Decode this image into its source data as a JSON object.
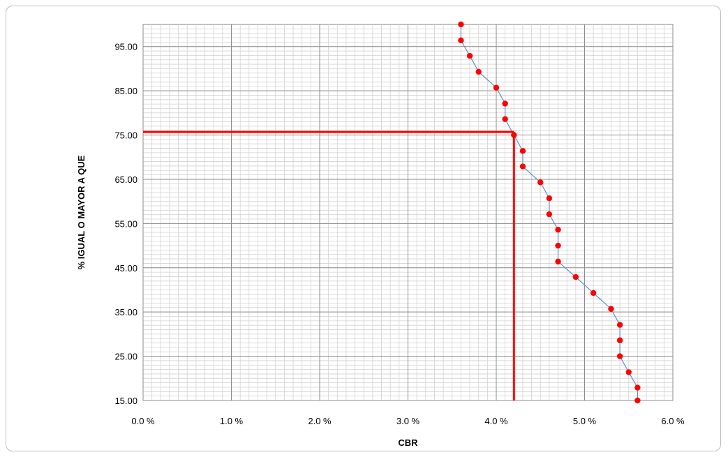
{
  "chart_data": {
    "type": "scatter",
    "xlabel": "CBR",
    "ylabel": "% IGUAL O MAYOR A QUE",
    "xlim": [
      0.0,
      6.0
    ],
    "ylim": [
      15.0,
      100.0
    ],
    "x_ticks": [
      "0.0 %",
      "1.0 %",
      "2.0 %",
      "3.0 %",
      "4.0 %",
      "5.0 %",
      "6.0 %"
    ],
    "y_ticks": [
      "15.00",
      "25.00",
      "35.00",
      "45.00",
      "55.00",
      "65.00",
      "75.00",
      "85.00",
      "95.00"
    ],
    "grid": true,
    "series": [
      {
        "points": [
          [
            3.6,
            100.0
          ],
          [
            3.6,
            96.4
          ],
          [
            3.7,
            92.9
          ],
          [
            3.8,
            89.3
          ],
          [
            4.0,
            85.7
          ],
          [
            4.1,
            82.1
          ],
          [
            4.1,
            78.6
          ],
          [
            4.2,
            75.0
          ],
          [
            4.3,
            71.4
          ],
          [
            4.3,
            67.9
          ],
          [
            4.5,
            64.3
          ],
          [
            4.6,
            60.7
          ],
          [
            4.6,
            57.1
          ],
          [
            4.7,
            53.6
          ],
          [
            4.7,
            50.0
          ],
          [
            4.7,
            46.4
          ],
          [
            4.9,
            42.9
          ],
          [
            5.1,
            39.3
          ],
          [
            5.3,
            35.7
          ],
          [
            5.4,
            32.1
          ],
          [
            5.4,
            28.6
          ],
          [
            5.4,
            25.0
          ],
          [
            5.5,
            21.4
          ],
          [
            5.6,
            17.9
          ],
          [
            5.6,
            15.0
          ]
        ],
        "line_color": "#5b8fc9",
        "marker_color": "#ff0000"
      }
    ],
    "reference_lines": {
      "x": 4.2,
      "y": 75.7,
      "color": "#ff0000"
    }
  }
}
